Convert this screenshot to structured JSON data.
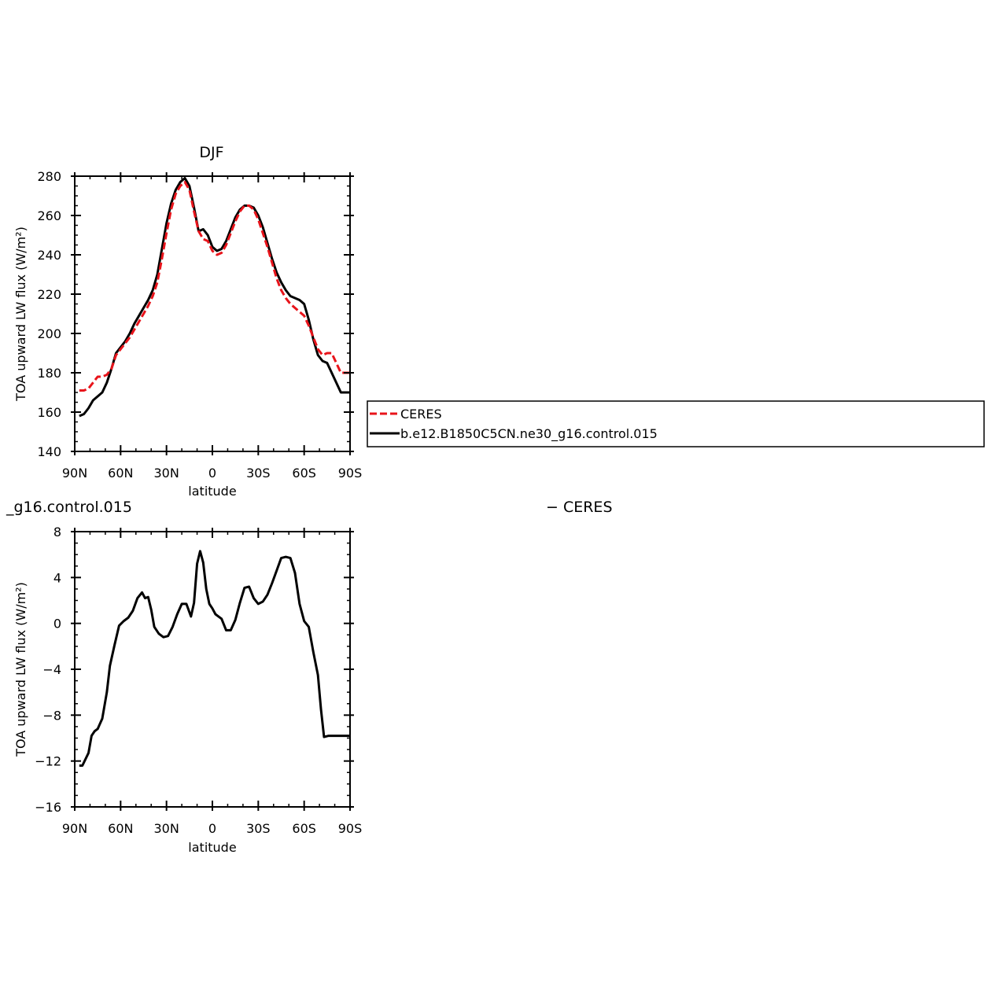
{
  "colors": {
    "ceres": "#e8141b",
    "model": "#000000",
    "background": "#ffffff",
    "frame": "#000000"
  },
  "page": {
    "top_title": "DJF",
    "lower_left_fragment": "_g16.control.015",
    "lower_right_fragment": "− CERES"
  },
  "legend": {
    "items": [
      {
        "label": "CERES",
        "style": "dashed",
        "color": "#e8141b"
      },
      {
        "label": "b.e12.B1850C5CN.ne30_g16.control.015",
        "style": "solid",
        "color": "#000000"
      }
    ]
  },
  "chart_data": [
    {
      "type": "line",
      "title": "DJF",
      "xlabel": "latitude",
      "ylabel": "TOA upward LW flux (W/m²)",
      "xlim": [
        -90,
        90
      ],
      "ylim": [
        140,
        280
      ],
      "x_ticks": [
        -90,
        -60,
        -30,
        0,
        30,
        60,
        90
      ],
      "x_tick_labels": [
        "90N",
        "60N",
        "30N",
        "0",
        "30S",
        "60S",
        "90S"
      ],
      "y_ticks": [
        140,
        160,
        180,
        200,
        220,
        240,
        260,
        280
      ],
      "y_tick_labels": [
        "140",
        "160",
        "180",
        "200",
        "220",
        "240",
        "260",
        "280"
      ],
      "x": [
        -87,
        -84,
        -81,
        -78,
        -75,
        -72,
        -69,
        -66,
        -63,
        -60,
        -57,
        -54,
        -51,
        -48,
        -45,
        -42,
        -39,
        -36,
        -33,
        -30,
        -27,
        -24,
        -21,
        -18,
        -15,
        -12,
        -9,
        -6,
        -3,
        0,
        3,
        6,
        9,
        12,
        15,
        18,
        21,
        24,
        27,
        30,
        33,
        36,
        39,
        42,
        45,
        48,
        51,
        54,
        57,
        60,
        63,
        66,
        69,
        72,
        75,
        78,
        81,
        84,
        87,
        90
      ],
      "series": [
        {
          "name": "CERES",
          "style": "dashed",
          "values": [
            171,
            171,
            172,
            175,
            178,
            178,
            179,
            182,
            189,
            192,
            195,
            198,
            202,
            206,
            210,
            214,
            219,
            226,
            238,
            251,
            263,
            271,
            275,
            277,
            273,
            262,
            252,
            248,
            247,
            242,
            240,
            241,
            245,
            251,
            257,
            262,
            265,
            265,
            263,
            258,
            251,
            244,
            236,
            228,
            222,
            218,
            215,
            213,
            211,
            209,
            204,
            198,
            192,
            189,
            190,
            190,
            185,
            180,
            180,
            180
          ]
        },
        {
          "name": "b.e12.B1850C5CN.ne30_g16.control.015",
          "style": "solid",
          "values": [
            158,
            159,
            162,
            166,
            168,
            170,
            175,
            182,
            190,
            193,
            196,
            200,
            205,
            209,
            213,
            217,
            222,
            230,
            243,
            256,
            266,
            273,
            277,
            279,
            275,
            264,
            252,
            253,
            250,
            244,
            242,
            243,
            247,
            253,
            259,
            263,
            265,
            265,
            264,
            260,
            254,
            246,
            238,
            231,
            226,
            222,
            219,
            218,
            217,
            215,
            207,
            197,
            189,
            186,
            185,
            180,
            175,
            170,
            170,
            170
          ]
        }
      ]
    },
    {
      "type": "line",
      "title": "",
      "xlabel": "latitude",
      "ylabel": "TOA upward LW flux (W/m²)",
      "xlim": [
        -90,
        90
      ],
      "ylim": [
        -16,
        8
      ],
      "x_ticks": [
        -90,
        -60,
        -30,
        0,
        30,
        60,
        90
      ],
      "x_tick_labels": [
        "90N",
        "60N",
        "30N",
        "0",
        "30S",
        "60S",
        "90S"
      ],
      "y_ticks": [
        -16,
        -12,
        -8,
        -4,
        0,
        4,
        8
      ],
      "y_tick_labels": [
        "−16",
        "−12",
        "−8",
        "−4",
        "0",
        "4",
        "8"
      ],
      "x": [
        -87,
        -85,
        -81,
        -79,
        -77,
        -75,
        -72,
        -69,
        -67,
        -64,
        -61,
        -58,
        -55,
        -52,
        -49,
        -46,
        -44,
        -42,
        -40,
        -38,
        -35,
        -32,
        -29,
        -26,
        -23,
        -20,
        -17,
        -14,
        -12,
        -10,
        -8,
        -6,
        -4,
        -2,
        0,
        2,
        4,
        6,
        9,
        12,
        15,
        18,
        21,
        24,
        27,
        30,
        33,
        36,
        39,
        42,
        45,
        48,
        51,
        54,
        57,
        60,
        63,
        66,
        69,
        71,
        73,
        76,
        79,
        82,
        85,
        87,
        88,
        90
      ],
      "series": [
        {
          "name": "b.e12.B1850C5CN.ne30_g16.control.015",
          "style": "solid",
          "values": [
            -12.4,
            -12.4,
            -11.3,
            -9.8,
            -9.4,
            -9.2,
            -8.3,
            -6.0,
            -3.7,
            -1.9,
            -0.2,
            0.2,
            0.5,
            1.1,
            2.2,
            2.7,
            2.2,
            2.3,
            1.2,
            -0.3,
            -0.9,
            -1.2,
            -1.1,
            -0.3,
            0.8,
            1.7,
            1.7,
            0.6,
            1.8,
            5.2,
            6.3,
            5.3,
            3.0,
            1.7,
            1.3,
            0.8,
            0.6,
            0.4,
            -0.6,
            -0.6,
            0.3,
            1.8,
            3.1,
            3.2,
            2.2,
            1.7,
            1.9,
            2.5,
            3.5,
            4.6,
            5.7,
            5.8,
            5.7,
            4.4,
            1.7,
            0.2,
            -0.3,
            -2.5,
            -4.5,
            -7.5,
            -9.9,
            -9.8,
            -9.8,
            -9.8,
            -9.8,
            -9.8,
            -9.8,
            -9.8
          ]
        }
      ]
    }
  ]
}
